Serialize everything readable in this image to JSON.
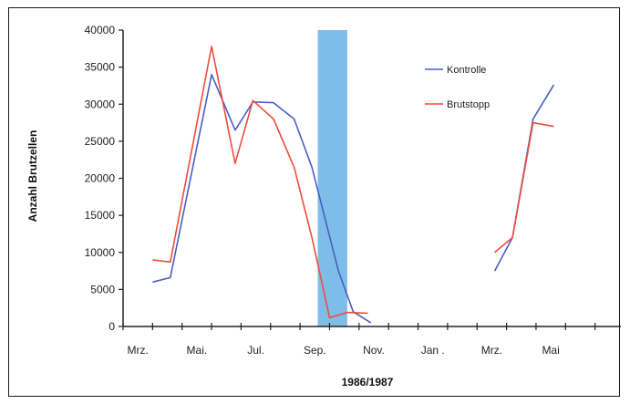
{
  "chart_data": {
    "type": "line",
    "title": "",
    "xlabel": "1986/1987",
    "ylabel": "Anzahl Brutzellen",
    "ylim": [
      0,
      40000
    ],
    "yticks": [
      0,
      5000,
      10000,
      15000,
      20000,
      25000,
      30000,
      35000,
      40000
    ],
    "xlim": [
      0,
      17
    ],
    "x_tick_labels": [
      "Mrz.",
      "Mai.",
      "Jul.",
      "Sep.",
      "Nov.",
      "Jan .",
      "Mrz.",
      "Mai"
    ],
    "grid": false,
    "legend_position": "top-right",
    "highlight_band": {
      "x_start": 6.6,
      "x_end": 7.6,
      "color": "#7ebde8"
    },
    "series": [
      {
        "name": "Kontrolle",
        "color": "#4a5fc1",
        "segments": [
          {
            "x": [
              1,
              1.6,
              3,
              3.8,
              4.4,
              5.1,
              5.8,
              6.4,
              7.3,
              7.8,
              8.4
            ],
            "y": [
              6000,
              6600,
              34000,
              26500,
              30300,
              30200,
              28000,
              21500,
              7500,
              2000,
              500
            ]
          },
          {
            "x": [
              12.6,
              13.2,
              13.9,
              14.6
            ],
            "y": [
              7500,
              12000,
              28000,
              32600
            ]
          }
        ]
      },
      {
        "name": "Brutstopp",
        "color": "#ef4c3d",
        "segments": [
          {
            "x": [
              1,
              1.6,
              3,
              3.8,
              4.4,
              5.1,
              5.8,
              6.4,
              7.0,
              7.6,
              8.3
            ],
            "y": [
              9000,
              8700,
              37800,
              22000,
              30500,
              28000,
              21500,
              12000,
              1200,
              1900,
              1800
            ]
          },
          {
            "x": [
              12.6,
              13.2,
              13.9,
              14.6
            ],
            "y": [
              10000,
              12000,
              27500,
              27000
            ]
          }
        ]
      }
    ]
  }
}
